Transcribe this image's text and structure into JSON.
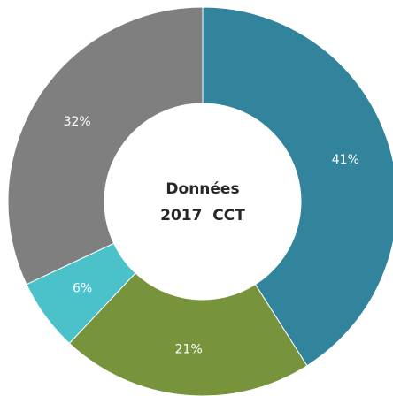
{
  "chart_data": {
    "type": "pie",
    "donut": true,
    "center_text": [
      "Données",
      "2017  CCT"
    ],
    "values": [
      41,
      21,
      6,
      32
    ],
    "value_labels": [
      "41%",
      "21%",
      "6%",
      "32%"
    ],
    "colors": [
      "#31849b",
      "#77933c",
      "#4bc1c9",
      "#7f7f7f"
    ]
  }
}
